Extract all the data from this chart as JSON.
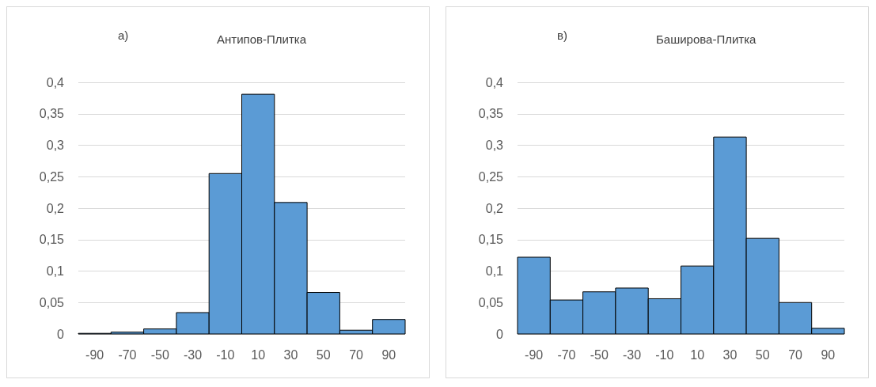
{
  "chart_data": [
    {
      "type": "histogram",
      "title": "Антипов-Плитка",
      "annotations": [
        "а)"
      ],
      "bins": [
        -100,
        -80,
        -60,
        -40,
        -20,
        0,
        20,
        40,
        60,
        80,
        100
      ],
      "values": [
        0.001,
        0.003,
        0.008,
        0.034,
        0.255,
        0.381,
        0.209,
        0.066,
        0.006,
        0.023
      ],
      "color": "#5b9bd5",
      "xlim": [
        -100,
        100
      ],
      "xticks": [
        -90,
        -70,
        -50,
        -30,
        -10,
        10,
        30,
        50,
        70,
        90
      ],
      "ylim": [
        0,
        0.4
      ],
      "yticks": [
        0,
        {
          "value": 0.05,
          "label": "0,05"
        },
        {
          "value": 0.1,
          "label": "0,1"
        },
        {
          "value": 0.15,
          "label": "0,15"
        },
        {
          "value": 0.2,
          "label": "0,2"
        },
        {
          "value": 0.25,
          "label": "0,25"
        },
        {
          "value": 0.3,
          "label": "0,3"
        },
        {
          "value": 0.35,
          "label": "0,35"
        },
        {
          "value": 0.4,
          "label": "0,4"
        }
      ],
      "grid": "y"
    },
    {
      "type": "histogram",
      "title": "Баширова-Плитка",
      "annotations": [
        "в)"
      ],
      "bins": [
        -100,
        -80,
        -60,
        -40,
        -20,
        0,
        20,
        40,
        60,
        80,
        100
      ],
      "values": [
        0.122,
        0.054,
        0.067,
        0.073,
        0.056,
        0.108,
        0.313,
        0.152,
        0.05,
        0.009
      ],
      "color": "#5b9bd5",
      "xlim": [
        -100,
        100
      ],
      "xticks": [
        -90,
        -70,
        -50,
        -30,
        -10,
        10,
        30,
        50,
        70,
        90
      ],
      "ylim": [
        0,
        0.4
      ],
      "yticks": [
        0,
        {
          "value": 0.05,
          "label": "0,05"
        },
        {
          "value": 0.1,
          "label": "0,1"
        },
        {
          "value": 0.15,
          "label": "0,15"
        },
        {
          "value": 0.2,
          "label": "0,2"
        },
        {
          "value": 0.25,
          "label": "0,25"
        },
        {
          "value": 0.3,
          "label": "0,3"
        },
        {
          "value": 0.35,
          "label": "0,35"
        },
        {
          "value": 0.4,
          "label": "0,4"
        }
      ],
      "grid": "y"
    }
  ]
}
